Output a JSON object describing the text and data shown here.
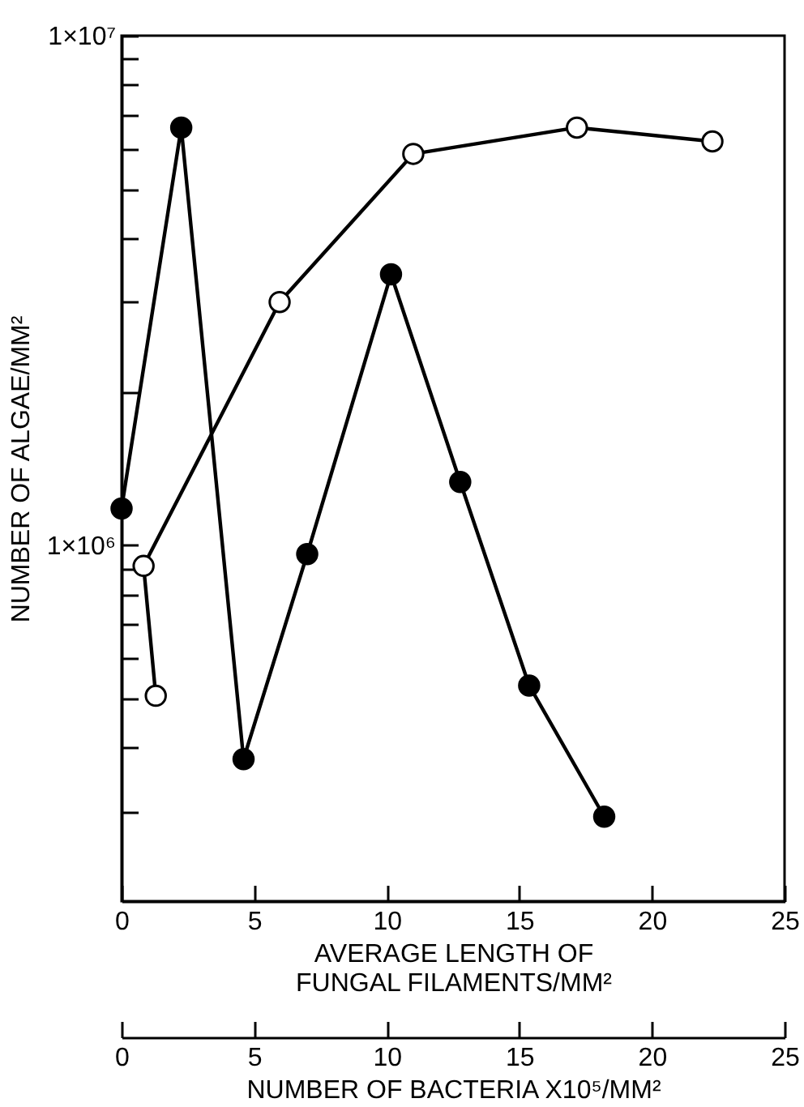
{
  "chart_data": {
    "type": "line",
    "xlabel": "AVERAGE LENGTH OF\nFUNGAL FILAMENTS/MM²",
    "x2label": "NUMBER OF BACTERIA X10⁵/MM²",
    "ylabel": "NUMBER OF ALGAE/MM²",
    "log": "y",
    "grid": false,
    "marker": "circle",
    "line_style": "solid",
    "xlim": [
      0,
      25
    ],
    "xticks": [
      0,
      5,
      10,
      15,
      20,
      25
    ],
    "x2lim": [
      0,
      25
    ],
    "x2ticks": [
      0,
      5,
      10,
      15,
      20,
      25
    ],
    "ylim": [
      200000,
      10000000
    ],
    "yticks": [
      {
        "value": 300000,
        "label": null
      },
      {
        "value": 400000,
        "label": null
      },
      {
        "value": 500000,
        "label": null
      },
      {
        "value": 600000,
        "label": null
      },
      {
        "value": 700000,
        "label": null
      },
      {
        "value": 800000,
        "label": null
      },
      {
        "value": 900000,
        "label": null
      },
      {
        "value": 1000000,
        "label": "1×10⁶"
      },
      {
        "value": 2000000,
        "label": null
      },
      {
        "value": 3000000,
        "label": null
      },
      {
        "value": 4000000,
        "label": null
      },
      {
        "value": 5000000,
        "label": null
      },
      {
        "value": 6000000,
        "label": null
      },
      {
        "value": 7000000,
        "label": null
      },
      {
        "value": 8000000,
        "label": null
      },
      {
        "value": 9000000,
        "label": null
      },
      {
        "value": 10000000,
        "label": "1×10⁷"
      }
    ],
    "series": [
      {
        "color": "#000000",
        "x": [
          0,
          2.25,
          4.6,
          7.0,
          10.16,
          12.77,
          15.37,
          18.2
        ],
        "values": [
          1180000,
          6600000,
          380000,
          960000,
          3400000,
          1330000,
          530000,
          293000
        ]
      },
      {
        "color": "#000000",
        "axis": "x2",
        "x": [
          1.29,
          0.83,
          5.96,
          11.0,
          17.17,
          22.28
        ],
        "values": [
          506000,
          910000,
          3000000,
          5860000,
          6600000,
          6200000
        ]
      }
    ]
  }
}
